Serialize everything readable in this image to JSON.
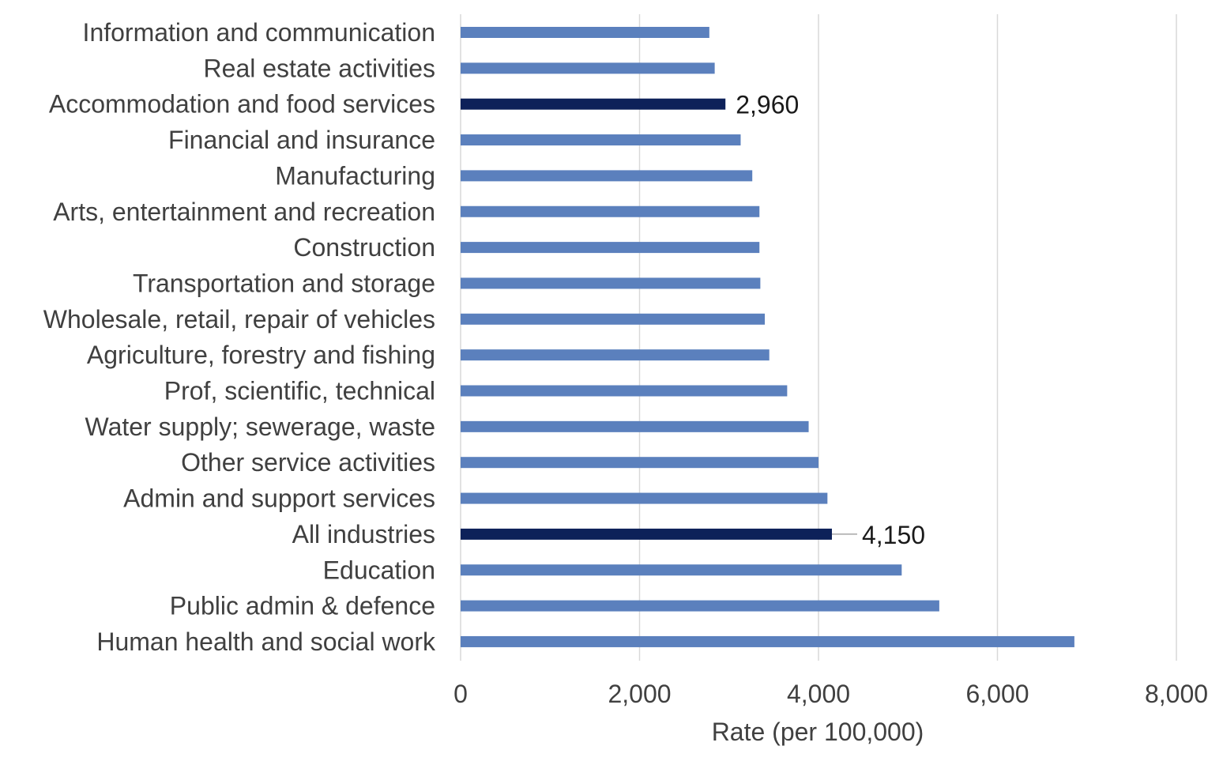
{
  "chart_data": {
    "type": "bar",
    "orientation": "horizontal",
    "categories": [
      "Information and communication",
      "Real estate activities",
      "Accommodation and food services",
      "Financial and insurance",
      "Manufacturing",
      "Arts, entertainment and recreation",
      "Construction",
      "Transportation and storage",
      "Wholesale, retail, repair of vehicles",
      "Agriculture, forestry and fishing",
      "Prof, scientific, technical",
      "Water supply; sewerage, waste",
      "Other service activities",
      "Admin and support services",
      "All industries",
      "Education",
      "Public admin & defence",
      "Human health and social work"
    ],
    "values": [
      2780,
      2840,
      2960,
      3130,
      3260,
      3340,
      3340,
      3350,
      3400,
      3450,
      3650,
      3890,
      4000,
      4100,
      4150,
      4930,
      5350,
      6860
    ],
    "highlighted": [
      "Accommodation and food services",
      "All industries"
    ],
    "data_labels": [
      {
        "category": "Accommodation and food services",
        "text": "2,960"
      },
      {
        "category": "All industries",
        "text": "4,150"
      }
    ],
    "xlabel": "Rate (per 100,000)",
    "ylabel": "",
    "xlim": [
      0,
      8000
    ],
    "x_ticks": [
      0,
      2000,
      4000,
      6000,
      8000
    ],
    "x_tick_labels": [
      "0",
      "2,000",
      "4,000",
      "6,000",
      "8,000"
    ],
    "grid": "vertical",
    "legend": "none",
    "colors": {
      "bar": "#5b80bd",
      "highlight": "#0d2159",
      "grid": "#d9d9d9",
      "text": "#404040"
    }
  }
}
